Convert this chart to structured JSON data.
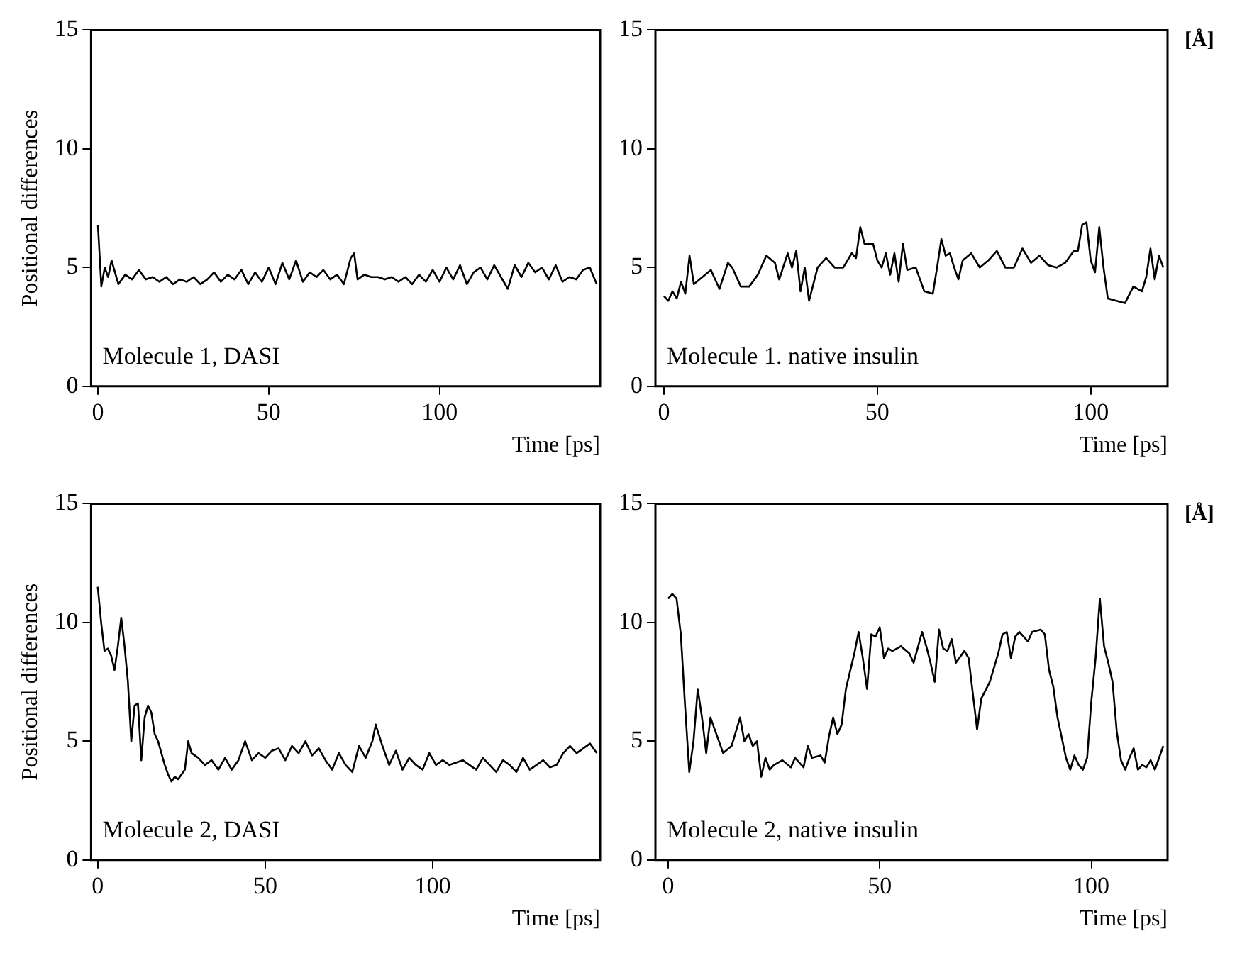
{
  "chart_data": [
    {
      "type": "line",
      "ylabel": "Positional differences",
      "xlabel": "Time [ps]",
      "annotations": [
        "Molecule 1, DASI"
      ],
      "xlim": [
        -2,
        147
      ],
      "ylim": [
        0,
        15
      ],
      "xticks": [
        0,
        50,
        100
      ],
      "yticks": [
        0,
        5,
        10,
        15
      ],
      "grid": false,
      "legend": false,
      "marker": "none",
      "series": [
        {
          "color": "#000000",
          "x": [
            0,
            1,
            2,
            3,
            4,
            6,
            8,
            10,
            12,
            14,
            16,
            18,
            20,
            22,
            24,
            26,
            28,
            30,
            32,
            34,
            36,
            38,
            40,
            42,
            44,
            46,
            48,
            50,
            52,
            54,
            56,
            58,
            60,
            62,
            64,
            66,
            68,
            70,
            72,
            74,
            75,
            76,
            78,
            80,
            82,
            84,
            86,
            88,
            90,
            92,
            94,
            96,
            98,
            100,
            102,
            104,
            106,
            108,
            110,
            112,
            114,
            116,
            118,
            120,
            122,
            124,
            126,
            128,
            130,
            132,
            134,
            136,
            138,
            140,
            142,
            144,
            146
          ],
          "values": [
            6.8,
            4.2,
            5.0,
            4.6,
            5.3,
            4.3,
            4.7,
            4.5,
            4.9,
            4.5,
            4.6,
            4.4,
            4.6,
            4.3,
            4.5,
            4.4,
            4.6,
            4.3,
            4.5,
            4.8,
            4.4,
            4.7,
            4.5,
            4.9,
            4.3,
            4.8,
            4.4,
            5.0,
            4.3,
            5.2,
            4.5,
            5.3,
            4.4,
            4.8,
            4.6,
            4.9,
            4.5,
            4.7,
            4.3,
            5.4,
            5.6,
            4.5,
            4.7,
            4.6,
            4.6,
            4.5,
            4.6,
            4.4,
            4.6,
            4.3,
            4.7,
            4.4,
            4.9,
            4.4,
            5.0,
            4.5,
            5.1,
            4.3,
            4.8,
            5.0,
            4.5,
            5.1,
            4.6,
            4.1,
            5.1,
            4.6,
            5.2,
            4.8,
            5.0,
            4.5,
            5.1,
            4.4,
            4.6,
            4.5,
            4.9,
            5.0,
            4.3
          ]
        }
      ]
    },
    {
      "type": "line",
      "xlabel": "Time [ps]",
      "annotations": [
        "Molecule 1. native insulin",
        "[Å]"
      ],
      "xlim": [
        -2,
        118
      ],
      "ylim": [
        0,
        15
      ],
      "xticks": [
        0,
        50,
        100
      ],
      "yticks": [
        0,
        5,
        10,
        15
      ],
      "grid": false,
      "legend": false,
      "marker": "none",
      "series": [
        {
          "color": "#000000",
          "x": [
            0,
            1,
            2,
            3,
            4,
            5,
            6,
            7,
            9,
            11,
            13,
            15,
            16,
            18,
            20,
            22,
            24,
            26,
            27,
            29,
            30,
            31,
            32,
            33,
            34,
            36,
            38,
            40,
            42,
            44,
            45,
            46,
            47,
            49,
            50,
            51,
            52,
            53,
            54,
            55,
            56,
            57,
            59,
            61,
            63,
            64,
            65,
            66,
            67,
            68,
            69,
            70,
            72,
            74,
            76,
            78,
            80,
            82,
            84,
            86,
            88,
            90,
            92,
            94,
            96,
            97,
            98,
            99,
            100,
            101,
            102,
            103,
            104,
            106,
            108,
            110,
            112,
            113,
            114,
            115,
            116,
            117
          ],
          "values": [
            3.8,
            3.6,
            4.0,
            3.7,
            4.4,
            3.9,
            5.5,
            4.3,
            4.6,
            4.9,
            4.1,
            5.2,
            5.0,
            4.2,
            4.2,
            4.7,
            5.5,
            5.2,
            4.5,
            5.6,
            5.0,
            5.7,
            4.0,
            5.0,
            3.6,
            5.0,
            5.4,
            5.0,
            5.0,
            5.6,
            5.4,
            6.7,
            6.0,
            6.0,
            5.3,
            5.0,
            5.6,
            4.7,
            5.6,
            4.4,
            6.0,
            4.9,
            5.0,
            4.0,
            3.9,
            5.0,
            6.2,
            5.5,
            5.6,
            5.0,
            4.5,
            5.3,
            5.6,
            5.0,
            5.3,
            5.7,
            5.0,
            5.0,
            5.8,
            5.2,
            5.5,
            5.1,
            5.0,
            5.2,
            5.7,
            5.7,
            6.8,
            6.9,
            5.3,
            4.8,
            6.7,
            5.0,
            3.7,
            3.6,
            3.5,
            4.2,
            4.0,
            4.6,
            5.8,
            4.5,
            5.5,
            5.0
          ]
        }
      ]
    },
    {
      "type": "line",
      "ylabel": "Positional differences",
      "xlabel": "Time [ps]",
      "annotations": [
        "Molecule 2, DASI"
      ],
      "xlim": [
        -2,
        150
      ],
      "ylim": [
        0,
        15
      ],
      "xticks": [
        0,
        50,
        100
      ],
      "yticks": [
        0,
        5,
        10,
        15
      ],
      "grid": false,
      "legend": false,
      "marker": "none",
      "series": [
        {
          "color": "#000000",
          "x": [
            0,
            1,
            2,
            3,
            4,
            5,
            6,
            7,
            8,
            9,
            10,
            11,
            12,
            13,
            14,
            15,
            16,
            17,
            18,
            19,
            20,
            21,
            22,
            23,
            24,
            26,
            27,
            28,
            30,
            32,
            34,
            36,
            38,
            40,
            42,
            44,
            46,
            48,
            50,
            52,
            54,
            56,
            58,
            60,
            62,
            64,
            66,
            68,
            70,
            72,
            74,
            76,
            78,
            80,
            82,
            83,
            85,
            87,
            89,
            91,
            93,
            95,
            97,
            99,
            101,
            103,
            105,
            107,
            109,
            111,
            113,
            115,
            117,
            119,
            121,
            123,
            125,
            127,
            129,
            131,
            133,
            135,
            137,
            139,
            141,
            143,
            145,
            147,
            149
          ],
          "values": [
            11.5,
            10.0,
            8.8,
            8.9,
            8.6,
            8.0,
            9.0,
            10.2,
            9.0,
            7.5,
            5.0,
            6.5,
            6.6,
            4.2,
            6.0,
            6.5,
            6.2,
            5.3,
            5.0,
            4.5,
            4.0,
            3.6,
            3.3,
            3.5,
            3.4,
            3.8,
            5.0,
            4.5,
            4.3,
            4.0,
            4.2,
            3.8,
            4.3,
            3.8,
            4.2,
            5.0,
            4.2,
            4.5,
            4.3,
            4.6,
            4.7,
            4.2,
            4.8,
            4.5,
            5.0,
            4.4,
            4.7,
            4.2,
            3.8,
            4.5,
            4.0,
            3.7,
            4.8,
            4.3,
            5.0,
            5.7,
            4.8,
            4.0,
            4.6,
            3.8,
            4.3,
            4.0,
            3.8,
            4.5,
            4.0,
            4.2,
            4.0,
            4.1,
            4.2,
            4.0,
            3.8,
            4.3,
            4.0,
            3.7,
            4.2,
            4.0,
            3.7,
            4.3,
            3.8,
            4.0,
            4.2,
            3.9,
            4.0,
            4.5,
            4.8,
            4.5,
            4.7,
            4.9,
            4.5
          ]
        }
      ]
    },
    {
      "type": "line",
      "xlabel": "Time [ps]",
      "annotations": [
        "Molecule 2, native insulin",
        "[Å]"
      ],
      "xlim": [
        -3,
        118
      ],
      "ylim": [
        0,
        15
      ],
      "xticks": [
        0,
        50,
        100
      ],
      "yticks": [
        0,
        5,
        10,
        15
      ],
      "grid": false,
      "legend": false,
      "marker": "none",
      "series": [
        {
          "color": "#000000",
          "x": [
            0,
            1,
            2,
            3,
            4,
            5,
            6,
            7,
            8,
            9,
            10,
            11,
            12,
            13,
            15,
            17,
            18,
            19,
            20,
            21,
            22,
            23,
            24,
            25,
            27,
            29,
            30,
            32,
            33,
            34,
            36,
            37,
            38,
            39,
            40,
            41,
            42,
            44,
            45,
            46,
            47,
            48,
            49,
            50,
            51,
            52,
            53,
            55,
            57,
            58,
            60,
            61,
            62,
            63,
            64,
            65,
            66,
            67,
            68,
            70,
            71,
            72,
            73,
            74,
            76,
            78,
            79,
            80,
            81,
            82,
            83,
            84,
            85,
            86,
            88,
            89,
            90,
            91,
            92,
            94,
            95,
            96,
            97,
            98,
            99,
            100,
            101,
            102,
            103,
            104,
            105,
            106,
            107,
            108,
            109,
            110,
            111,
            112,
            113,
            114,
            115,
            116,
            117
          ],
          "values": [
            11.0,
            11.2,
            11.0,
            9.5,
            6.5,
            3.7,
            5.0,
            7.2,
            6.0,
            4.5,
            6.0,
            5.5,
            5.0,
            4.5,
            4.8,
            6.0,
            5.0,
            5.3,
            4.8,
            5.0,
            3.5,
            4.3,
            3.8,
            4.0,
            4.2,
            3.9,
            4.3,
            3.9,
            4.8,
            4.3,
            4.4,
            4.1,
            5.2,
            6.0,
            5.3,
            5.7,
            7.2,
            8.7,
            9.6,
            8.5,
            7.2,
            9.5,
            9.4,
            9.8,
            8.5,
            8.9,
            8.8,
            9.0,
            8.7,
            8.3,
            9.6,
            9.0,
            8.3,
            7.5,
            9.7,
            8.9,
            8.8,
            9.3,
            8.3,
            8.8,
            8.5,
            7.0,
            5.5,
            6.8,
            7.5,
            8.7,
            9.5,
            9.6,
            8.5,
            9.4,
            9.6,
            9.4,
            9.2,
            9.6,
            9.7,
            9.5,
            8.0,
            7.3,
            6.0,
            4.3,
            3.8,
            4.4,
            4.0,
            3.8,
            4.3,
            6.7,
            8.5,
            11.0,
            9.0,
            8.3,
            7.5,
            5.4,
            4.2,
            3.8,
            4.3,
            4.7,
            3.8,
            4.0,
            3.9,
            4.2,
            3.8,
            4.3,
            4.8
          ]
        }
      ]
    }
  ]
}
